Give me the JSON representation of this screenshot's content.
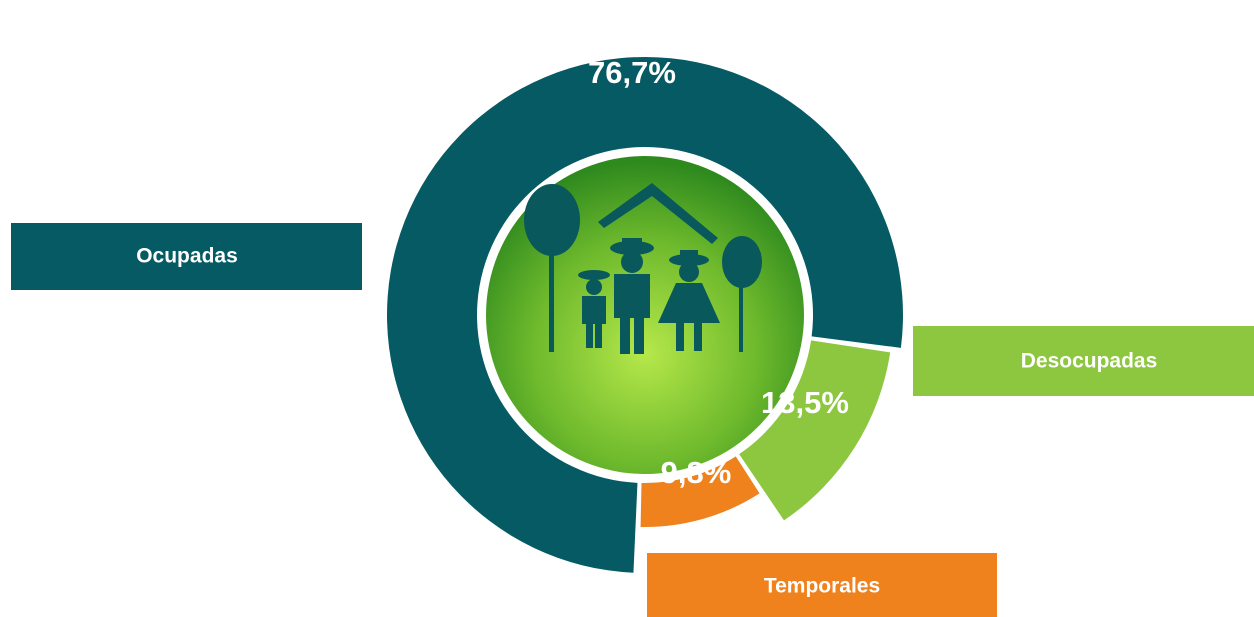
{
  "chart_data": {
    "type": "donut",
    "categories": [
      "Ocupadas",
      "Desocupadas",
      "Temporales"
    ],
    "values": [
      76.7,
      13.5,
      9.8
    ],
    "value_labels": [
      "76,7%",
      "13,5%",
      "9,8%"
    ],
    "colors": [
      "#055a63",
      "#8dc63f",
      "#f0821e"
    ]
  }
}
